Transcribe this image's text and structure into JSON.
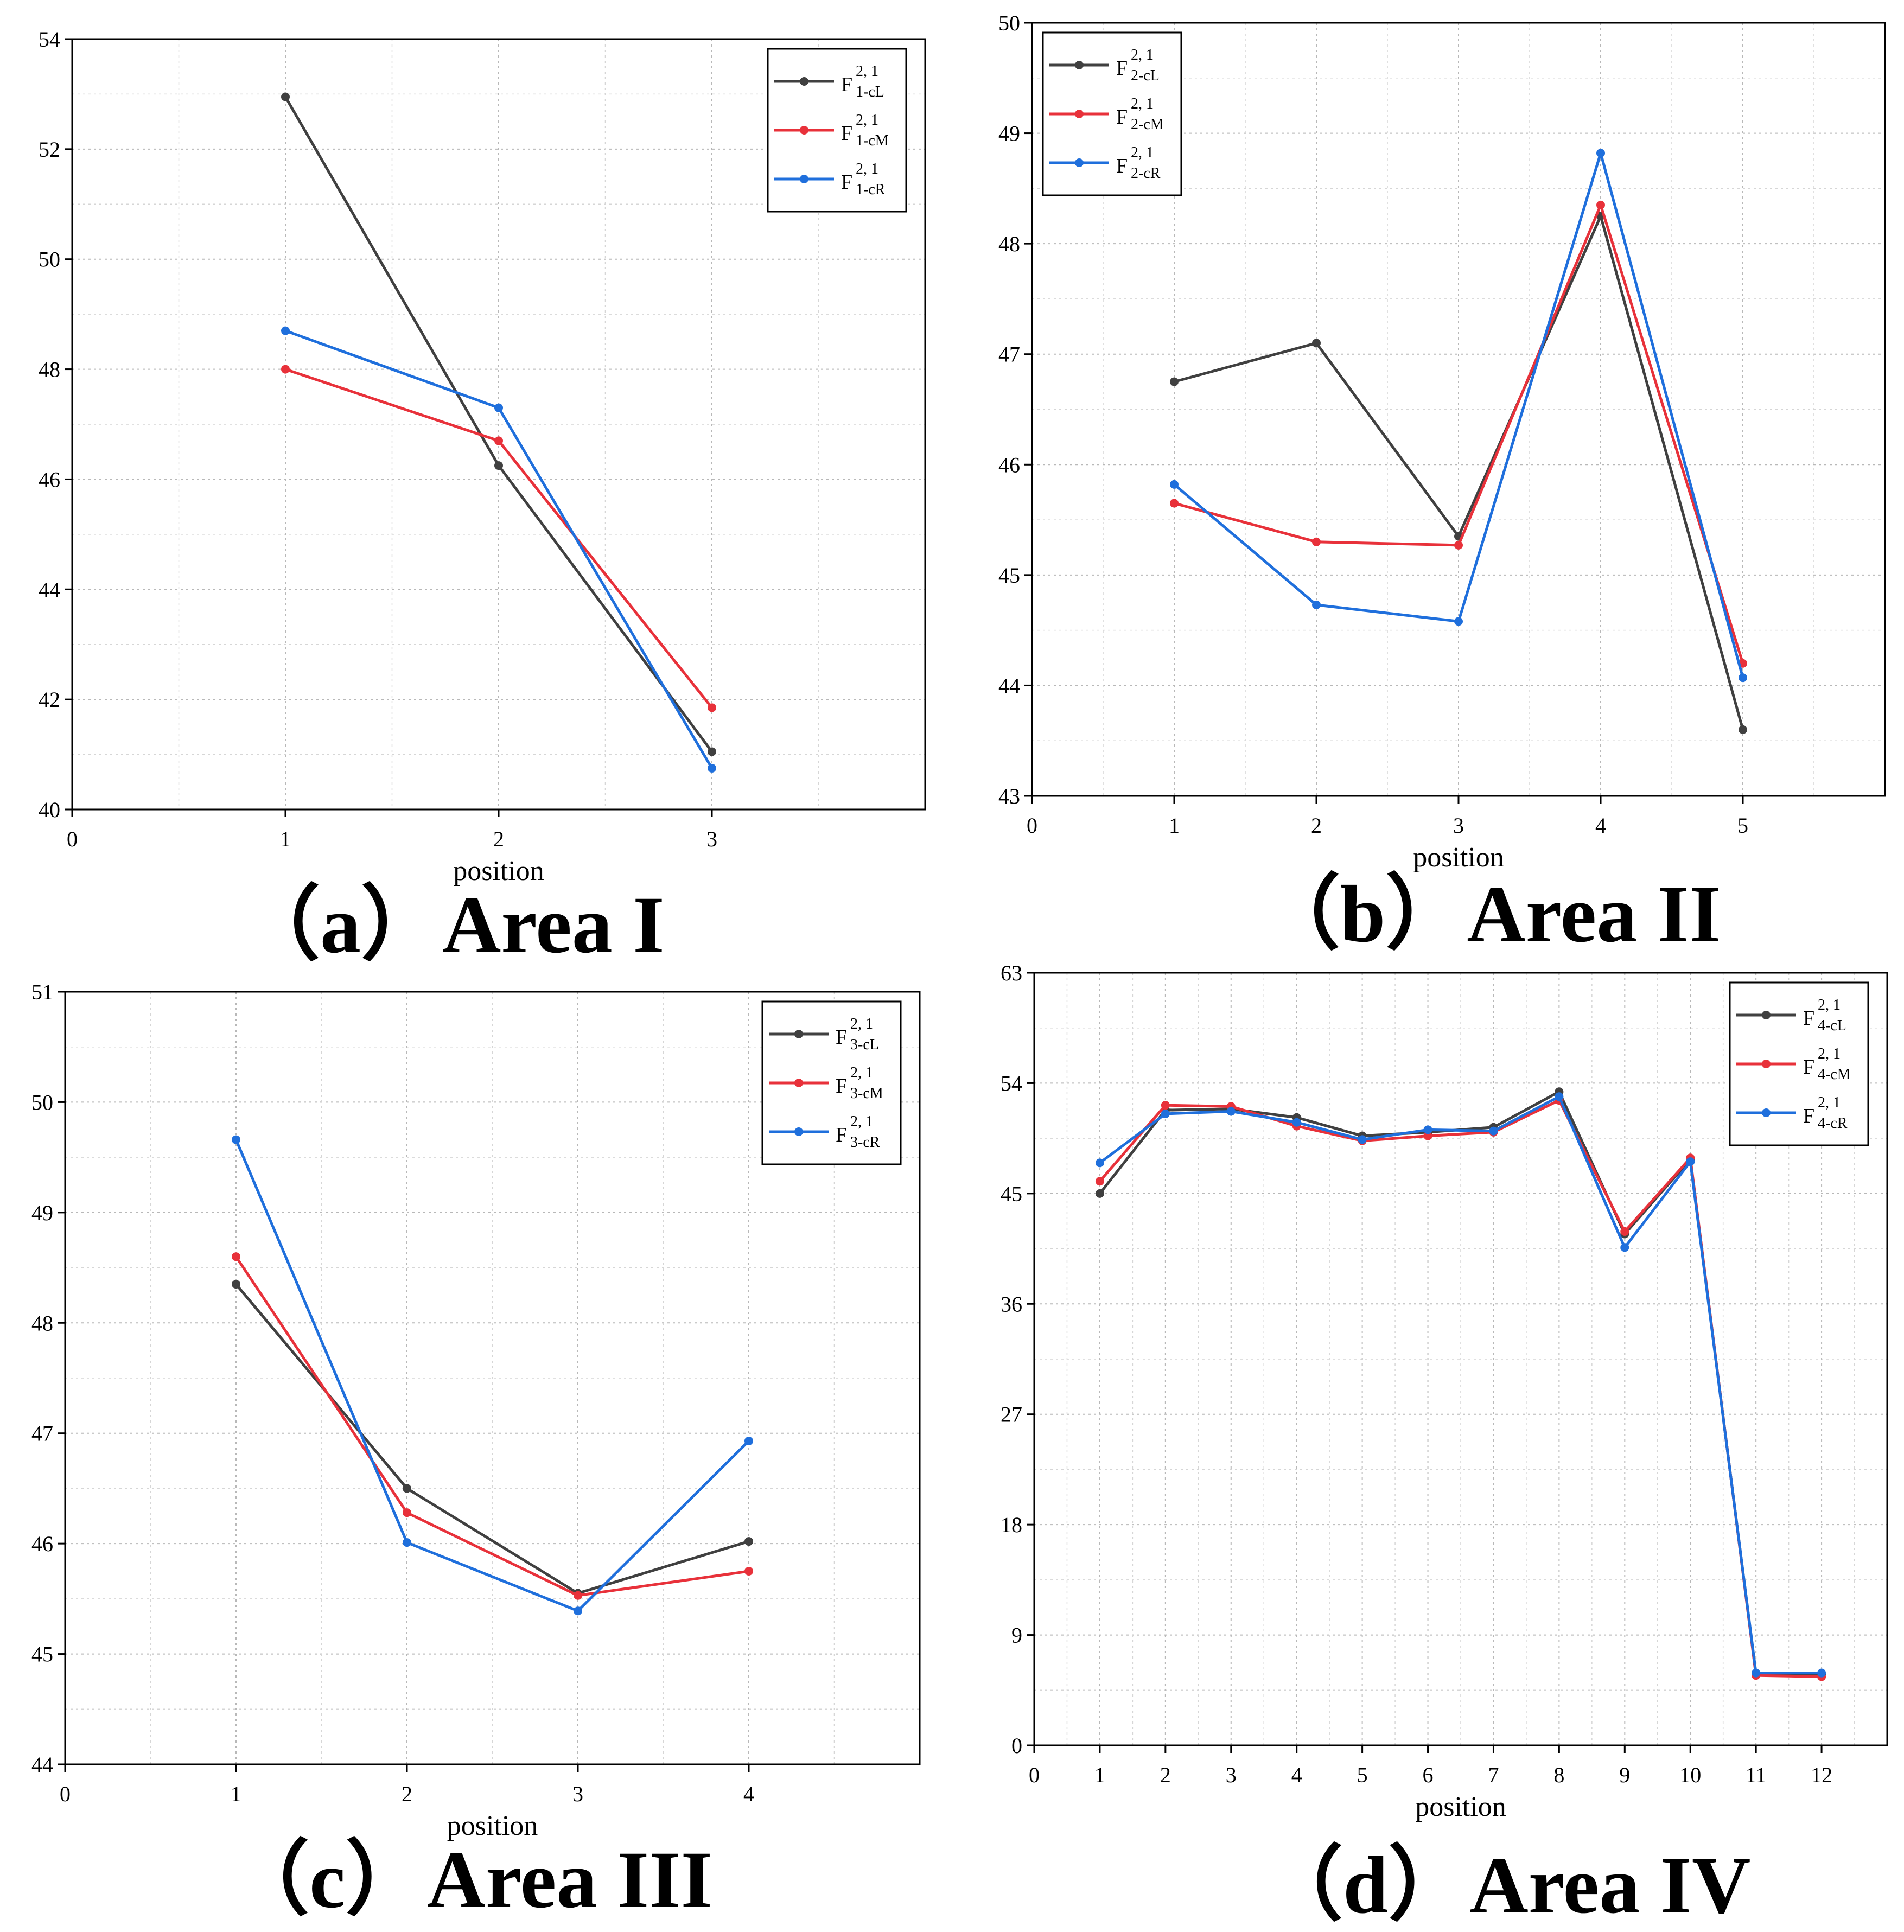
{
  "chart_data": [
    {
      "id": "a",
      "type": "line",
      "caption": "（a）Area I",
      "xlabel": "position",
      "ylabel": "",
      "x_ticks": [
        0,
        1,
        2,
        3
      ],
      "xlim": [
        0,
        4
      ],
      "y_ticks": [
        40,
        42,
        44,
        46,
        48,
        50,
        52,
        54
      ],
      "ylim": [
        40,
        54
      ],
      "legend_position": "top-right",
      "x": [
        1,
        2,
        3
      ],
      "series": [
        {
          "legend_main": "F",
          "legend_sup": "2, 1",
          "legend_sub": "1-cL",
          "color": "#404040",
          "values": [
            52.95,
            46.25,
            41.05
          ]
        },
        {
          "legend_main": "F",
          "legend_sup": "2, 1",
          "legend_sub": "1-cM",
          "color": "#e8313a",
          "values": [
            48.0,
            46.7,
            41.85
          ]
        },
        {
          "legend_main": "F",
          "legend_sup": "2, 1",
          "legend_sub": "1-cR",
          "color": "#1f6fdc",
          "values": [
            48.7,
            47.3,
            40.75
          ]
        }
      ]
    },
    {
      "id": "b",
      "type": "line",
      "caption": "（b）Area II",
      "xlabel": "position",
      "ylabel": "",
      "x_ticks": [
        0,
        1,
        2,
        3,
        4,
        5
      ],
      "xlim": [
        0,
        6
      ],
      "y_ticks": [
        43,
        44,
        45,
        46,
        47,
        48,
        49,
        50
      ],
      "ylim": [
        43,
        50
      ],
      "legend_position": "top-left",
      "x": [
        1,
        2,
        3,
        4,
        5
      ],
      "series": [
        {
          "legend_main": "F",
          "legend_sup": "2, 1",
          "legend_sub": "2-cL",
          "color": "#404040",
          "values": [
            46.75,
            47.1,
            45.35,
            48.25,
            43.6
          ]
        },
        {
          "legend_main": "F",
          "legend_sup": "2, 1",
          "legend_sub": "2-cM",
          "color": "#e8313a",
          "values": [
            45.65,
            45.3,
            45.27,
            48.35,
            44.2
          ]
        },
        {
          "legend_main": "F",
          "legend_sup": "2, 1",
          "legend_sub": "2-cR",
          "color": "#1f6fdc",
          "values": [
            45.82,
            44.73,
            44.58,
            48.82,
            44.07
          ]
        }
      ]
    },
    {
      "id": "c",
      "type": "line",
      "caption": "（c）Area III",
      "xlabel": "position",
      "ylabel": "",
      "x_ticks": [
        0,
        1,
        2,
        3,
        4
      ],
      "xlim": [
        0,
        5
      ],
      "y_ticks": [
        44,
        45,
        46,
        47,
        48,
        49,
        50,
        51
      ],
      "ylim": [
        44,
        51
      ],
      "legend_position": "top-right",
      "x": [
        1,
        2,
        3,
        4
      ],
      "series": [
        {
          "legend_main": "F",
          "legend_sup": "2, 1",
          "legend_sub": "3-cL",
          "color": "#404040",
          "values": [
            48.35,
            46.5,
            45.55,
            46.02
          ]
        },
        {
          "legend_main": "F",
          "legend_sup": "2, 1",
          "legend_sub": "3-cM",
          "color": "#e8313a",
          "values": [
            48.6,
            46.28,
            45.53,
            45.75
          ]
        },
        {
          "legend_main": "F",
          "legend_sup": "2, 1",
          "legend_sub": "3-cR",
          "color": "#1f6fdc",
          "values": [
            49.66,
            46.01,
            45.39,
            46.93
          ]
        }
      ]
    },
    {
      "id": "d",
      "type": "line",
      "caption": "（d）Area IV",
      "xlabel": "position",
      "ylabel": "",
      "x_ticks": [
        0,
        1,
        2,
        3,
        4,
        5,
        6,
        7,
        8,
        9,
        10,
        11,
        12
      ],
      "xlim": [
        0,
        13
      ],
      "y_ticks": [
        0,
        9,
        18,
        27,
        36,
        45,
        54,
        63
      ],
      "ylim": [
        0,
        63
      ],
      "legend_position": "top-right",
      "x": [
        1,
        2,
        3,
        4,
        5,
        6,
        7,
        8,
        9,
        10,
        11,
        12
      ],
      "series": [
        {
          "legend_main": "F",
          "legend_sup": "2, 1",
          "legend_sub": "4-cL",
          "color": "#404040",
          "values": [
            45.0,
            51.8,
            51.9,
            51.2,
            49.7,
            50.0,
            50.4,
            53.3,
            41.7,
            47.8,
            5.8,
            5.8
          ]
        },
        {
          "legend_main": "F",
          "legend_sup": "2, 1",
          "legend_sub": "4-cM",
          "color": "#e8313a",
          "values": [
            46.0,
            52.2,
            52.1,
            50.5,
            49.3,
            49.7,
            50.0,
            52.6,
            41.9,
            47.9,
            5.7,
            5.6
          ]
        },
        {
          "legend_main": "F",
          "legend_sup": "2, 1",
          "legend_sub": "4-cR",
          "color": "#1f6fdc",
          "values": [
            47.5,
            51.5,
            51.7,
            50.8,
            49.4,
            50.2,
            50.1,
            52.9,
            40.6,
            47.6,
            5.9,
            5.9
          ]
        }
      ]
    }
  ]
}
